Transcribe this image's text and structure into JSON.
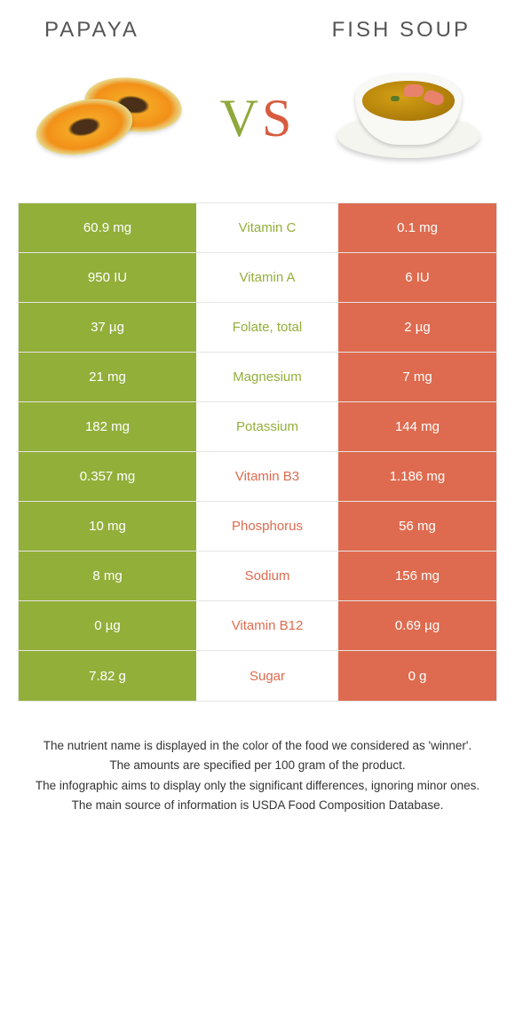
{
  "header": {
    "left_title": "PAPAYA",
    "right_title": "FISH SOUP"
  },
  "vs": {
    "v": "V",
    "s": "S"
  },
  "colors": {
    "left_bg": "#92af3a",
    "right_bg": "#de6b4f",
    "left_text": "#92af3a",
    "right_text": "#de6b4f",
    "white": "#ffffff",
    "header_text": "#555555",
    "border": "#e5e5e5"
  },
  "layout": {
    "left_width": 200,
    "mid_width": 160,
    "right_width": 178
  },
  "rows": [
    {
      "left": "60.9 mg",
      "label": "Vitamin C",
      "right": "0.1 mg",
      "winner": "left"
    },
    {
      "left": "950 IU",
      "label": "Vitamin A",
      "right": "6 IU",
      "winner": "left"
    },
    {
      "left": "37 µg",
      "label": "Folate, total",
      "right": "2 µg",
      "winner": "left"
    },
    {
      "left": "21 mg",
      "label": "Magnesium",
      "right": "7 mg",
      "winner": "left"
    },
    {
      "left": "182 mg",
      "label": "Potassium",
      "right": "144 mg",
      "winner": "left"
    },
    {
      "left": "0.357 mg",
      "label": "Vitamin B3",
      "right": "1.186 mg",
      "winner": "right"
    },
    {
      "left": "10 mg",
      "label": "Phosphorus",
      "right": "56 mg",
      "winner": "right"
    },
    {
      "left": "8 mg",
      "label": "Sodium",
      "right": "156 mg",
      "winner": "right"
    },
    {
      "left": "0 µg",
      "label": "Vitamin B12",
      "right": "0.69 µg",
      "winner": "right"
    },
    {
      "left": "7.82 g",
      "label": "Sugar",
      "right": "0 g",
      "winner": "right"
    }
  ],
  "footnote": {
    "l1": "The nutrient name is displayed in the color of the food we considered as 'winner'.",
    "l2": "The amounts are specified per 100 gram of the product.",
    "l3": "The infographic aims to display only the significant differences, ignoring minor ones.",
    "l4": "The main source of information is USDA Food Composition Database."
  }
}
